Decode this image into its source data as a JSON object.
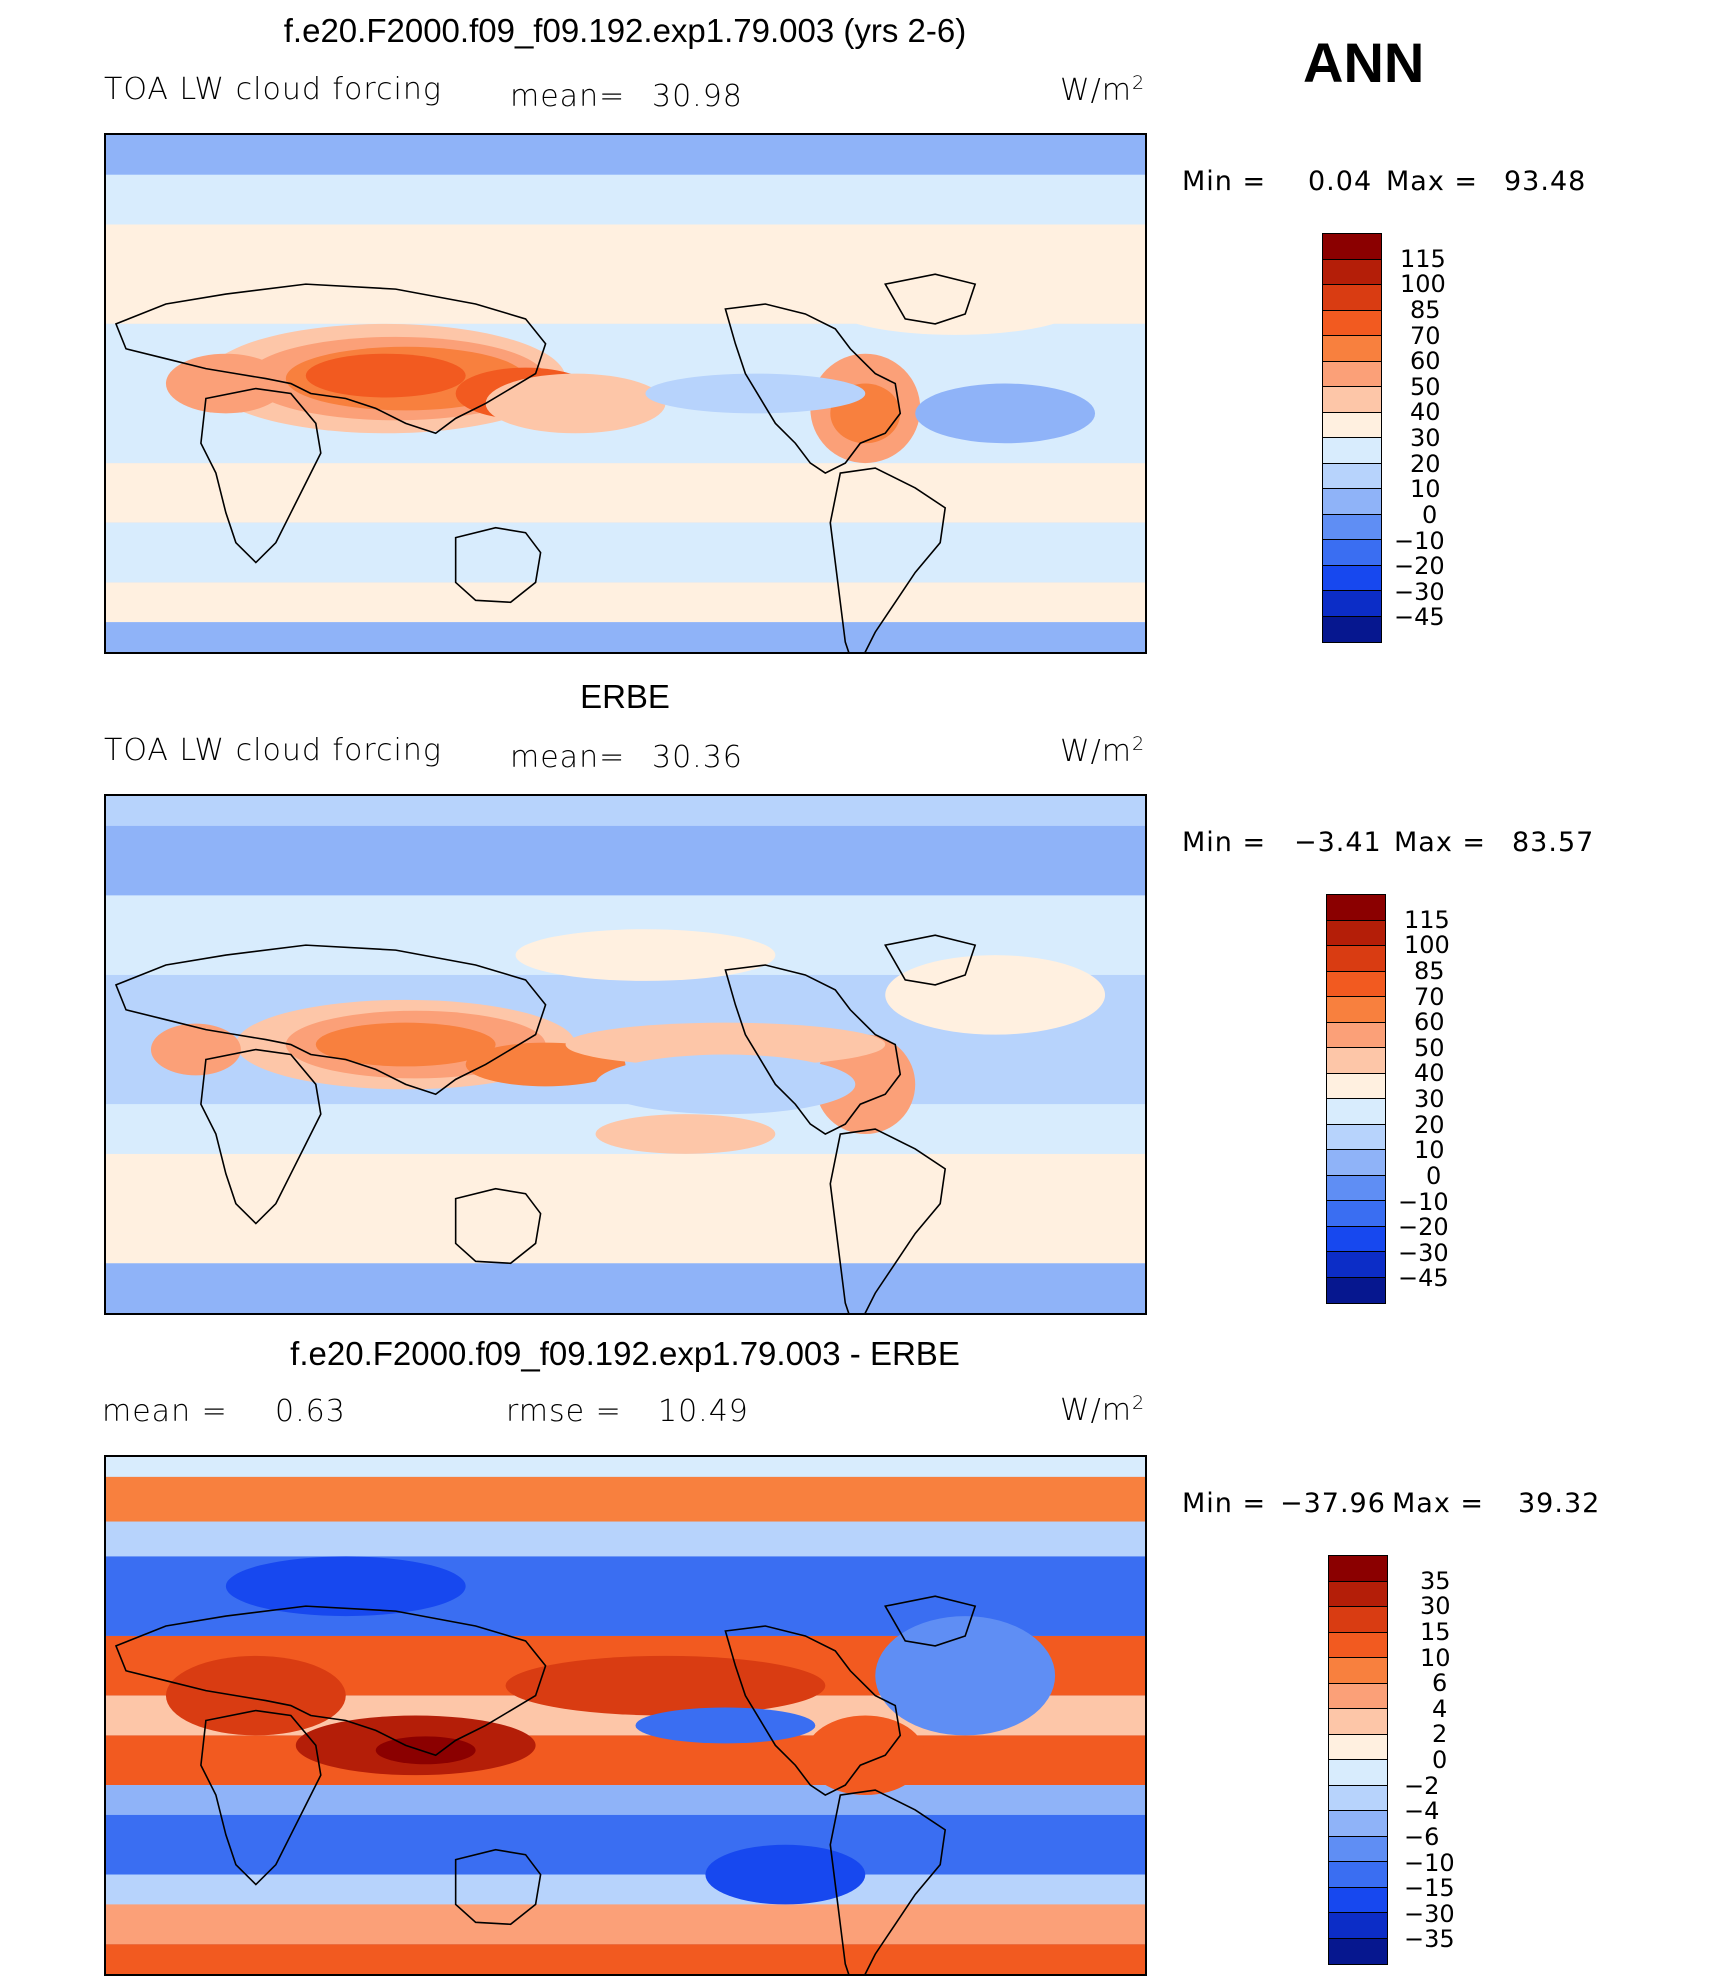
{
  "ann_label": "ANN",
  "panels": [
    {
      "title": "f.e20.F2000.f09_f09.192.exp1.79.003 (yrs 2-6)",
      "left_label": "TOA LW cloud forcing",
      "mean_label": "mean=",
      "mean_value": "30.98",
      "unit": "W/m",
      "unit_sup": "2",
      "min_label": "Min  =",
      "min_value": "0.04",
      "max_label": "Max  =",
      "max_value": "93.48",
      "map_type": "model",
      "colorbar": {
        "levels": [
          "115",
          "100",
          "85",
          "70",
          "60",
          "50",
          "40",
          "30",
          "20",
          "10",
          "0",
          "−10",
          "−20",
          "−30",
          "−45"
        ],
        "colors": [
          "#8b0000",
          "#b41e08",
          "#d93c12",
          "#f25a20",
          "#f8803e",
          "#fba078",
          "#fdc6a8",
          "#fff0e0",
          "#d8ecfd",
          "#b7d3fc",
          "#8fb3f8",
          "#5f8ef4",
          "#3a6ef2",
          "#1748ef",
          "#0c2dc7",
          "#06178f"
        ]
      }
    },
    {
      "title": "ERBE",
      "left_label": "TOA LW cloud forcing",
      "mean_label": "mean=",
      "mean_value": "30.36",
      "unit": "W/m",
      "unit_sup": "2",
      "min_label": "Min  =",
      "min_value": "−3.41",
      "max_label": "Max  =",
      "max_value": "83.57",
      "map_type": "obs",
      "colorbar": {
        "levels": [
          "115",
          "100",
          "85",
          "70",
          "60",
          "50",
          "40",
          "30",
          "20",
          "10",
          "0",
          "−10",
          "−20",
          "−30",
          "−45"
        ],
        "colors": [
          "#8b0000",
          "#b41e08",
          "#d93c12",
          "#f25a20",
          "#f8803e",
          "#fba078",
          "#fdc6a8",
          "#fff0e0",
          "#d8ecfd",
          "#b7d3fc",
          "#8fb3f8",
          "#5f8ef4",
          "#3a6ef2",
          "#1748ef",
          "#0c2dc7",
          "#06178f"
        ]
      }
    },
    {
      "title": "f.e20.F2000.f09_f09.192.exp1.79.003 - ERBE",
      "left_label": "mean  =",
      "mean_label": "",
      "mean_value": "0.63",
      "rmse_label": "rmse  =",
      "rmse_value": "10.49",
      "unit": "W/m",
      "unit_sup": "2",
      "min_label": "Min  =",
      "min_value": "−37.96",
      "max_label": "Max  =",
      "max_value": "39.32",
      "map_type": "diff",
      "colorbar": {
        "levels": [
          "35",
          "30",
          "15",
          "10",
          "6",
          "4",
          "2",
          "0",
          "−2",
          "−4",
          "−6",
          "−10",
          "−15",
          "−30",
          "−35"
        ],
        "colors": [
          "#8b0000",
          "#b41e08",
          "#d93c12",
          "#f25a20",
          "#f8803e",
          "#fba078",
          "#fdc6a8",
          "#fff0e0",
          "#d8ecfd",
          "#b7d3fc",
          "#8fb3f8",
          "#5f8ef4",
          "#3a6ef2",
          "#1748ef",
          "#0c2dc7",
          "#06178f"
        ]
      }
    }
  ]
}
